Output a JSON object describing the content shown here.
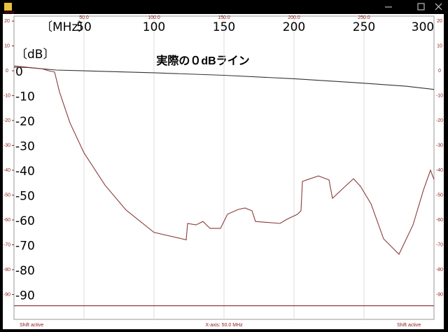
{
  "window": {
    "status_left": "Shift active",
    "status_center": "X-axis: 50.0 MHz",
    "status_right": "Shift active"
  },
  "chart_data": {
    "type": "line",
    "annotation": "実際の０dBライン",
    "x_unit": "MHz",
    "overlay_xlabel": "〔MHz〕",
    "overlay_ylabel": "〔dB〕",
    "xlim": [
      0,
      300
    ],
    "ylim": [
      -100,
      22
    ],
    "xticks": [
      {
        "value": 50,
        "label": "50.0"
      },
      {
        "value": 100,
        "label": "100.0"
      },
      {
        "value": 150,
        "label": "150.0"
      },
      {
        "value": 200,
        "label": "200.0"
      },
      {
        "value": 250,
        "label": "250.0"
      }
    ],
    "yticks": [
      20,
      10,
      0,
      -10,
      -20,
      -30,
      -40,
      -50,
      -60,
      -70,
      -80,
      -90
    ],
    "overlay_xticks": [
      50,
      100,
      150,
      200,
      250,
      300
    ],
    "overlay_yticks": [
      0,
      -10,
      -20,
      -30,
      -40,
      -50,
      -60,
      -70,
      -80,
      -90
    ],
    "grid": "x",
    "reference_line": -94.5,
    "reference_color": "#8b3a3a",
    "series": [
      {
        "color": "#333333",
        "x": [
          0,
          10,
          20,
          30,
          50,
          100,
          150,
          200,
          250,
          280,
          300
        ],
        "values": [
          1.5,
          1.3,
          0.8,
          0.3,
          0,
          -0.8,
          -1.8,
          -3.2,
          -5,
          -6.2,
          -7.5
        ]
      },
      {
        "color": "#8b3a3a",
        "x": [
          0,
          20,
          25,
          29,
          32.5,
          40,
          50,
          65,
          80,
          100,
          120,
          123,
          124,
          130,
          135,
          140,
          147.5,
          152.5,
          160,
          165,
          170,
          172.5,
          190,
          195,
          202.5,
          205,
          206,
          210,
          217.5,
          225,
          227.5,
          235,
          242.5,
          247.5,
          255,
          264,
          275,
          285,
          292.5,
          297.5,
          300
        ],
        "values": [
          2,
          0.8,
          0,
          -0.5,
          -8.5,
          -21,
          -33,
          -46,
          -56,
          -65,
          -67.6,
          -68,
          -61.4,
          -62,
          -60.6,
          -63.4,
          -63.4,
          -57.7,
          -55.8,
          -55.2,
          -56.3,
          -60.6,
          -61.4,
          -59.7,
          -57.7,
          -56.3,
          -44.5,
          -43.7,
          -42.3,
          -43.9,
          -51.3,
          -47.3,
          -43.4,
          -46.5,
          -53.5,
          -67.6,
          -73.8,
          -62,
          -47.9,
          -40,
          -43.7
        ]
      }
    ]
  }
}
